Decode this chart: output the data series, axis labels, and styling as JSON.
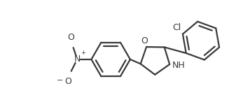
{
  "line_color": "#3a3a3a",
  "bg_color": "#ffffff",
  "line_width": 1.6,
  "font_size": 10,
  "figsize": [
    3.57,
    1.53
  ],
  "dpi": 100,
  "xlim": [
    0,
    357
  ],
  "ylim": [
    0,
    153
  ]
}
